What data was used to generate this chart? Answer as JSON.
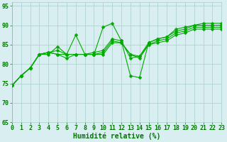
{
  "title": "",
  "xlabel": "Humidité relative (%)",
  "ylabel": "",
  "bg_color": "#d8eef0",
  "grid_color": "#aacccc",
  "line_color": "#00aa00",
  "marker_color": "#00aa00",
  "xlim": [
    0,
    23
  ],
  "ylim": [
    65,
    96
  ],
  "yticks": [
    65,
    70,
    75,
    80,
    85,
    90,
    95
  ],
  "xticks": [
    0,
    1,
    2,
    3,
    4,
    5,
    6,
    7,
    8,
    9,
    10,
    11,
    12,
    13,
    14,
    15,
    16,
    17,
    18,
    19,
    20,
    21,
    22,
    23
  ],
  "series": [
    [
      74.5,
      77.0,
      79.0,
      82.5,
      82.5,
      84.5,
      82.5,
      87.5,
      82.5,
      82.5,
      89.5,
      90.5,
      86.0,
      77.0,
      76.5,
      85.5,
      86.5,
      87.0,
      89.0,
      89.5,
      90.0,
      90.5,
      90.5,
      90.5
    ],
    [
      74.5,
      77.0,
      79.0,
      82.5,
      83.0,
      83.5,
      82.5,
      82.5,
      82.5,
      83.0,
      83.5,
      86.5,
      86.0,
      81.5,
      82.0,
      85.5,
      86.5,
      87.0,
      88.5,
      89.0,
      90.0,
      90.0,
      90.0,
      90.0
    ],
    [
      74.5,
      77.0,
      79.0,
      82.5,
      83.0,
      82.5,
      82.5,
      82.5,
      82.5,
      82.5,
      83.0,
      86.0,
      85.5,
      82.5,
      82.0,
      85.0,
      86.0,
      86.5,
      88.0,
      88.5,
      89.5,
      89.5,
      89.5,
      89.5
    ],
    [
      74.5,
      77.0,
      79.0,
      82.5,
      83.0,
      82.5,
      81.5,
      82.5,
      82.5,
      82.5,
      82.5,
      85.5,
      85.5,
      82.5,
      81.5,
      85.0,
      85.5,
      86.0,
      87.5,
      88.0,
      89.0,
      89.0,
      89.0,
      89.0
    ]
  ],
  "xlabel_fontsize": 7,
  "tick_fontsize": 6,
  "xlabel_color": "#007700",
  "tick_color": "#007700",
  "marker_size": 2.5,
  "linewidth": 0.8,
  "font_family": "monospace"
}
